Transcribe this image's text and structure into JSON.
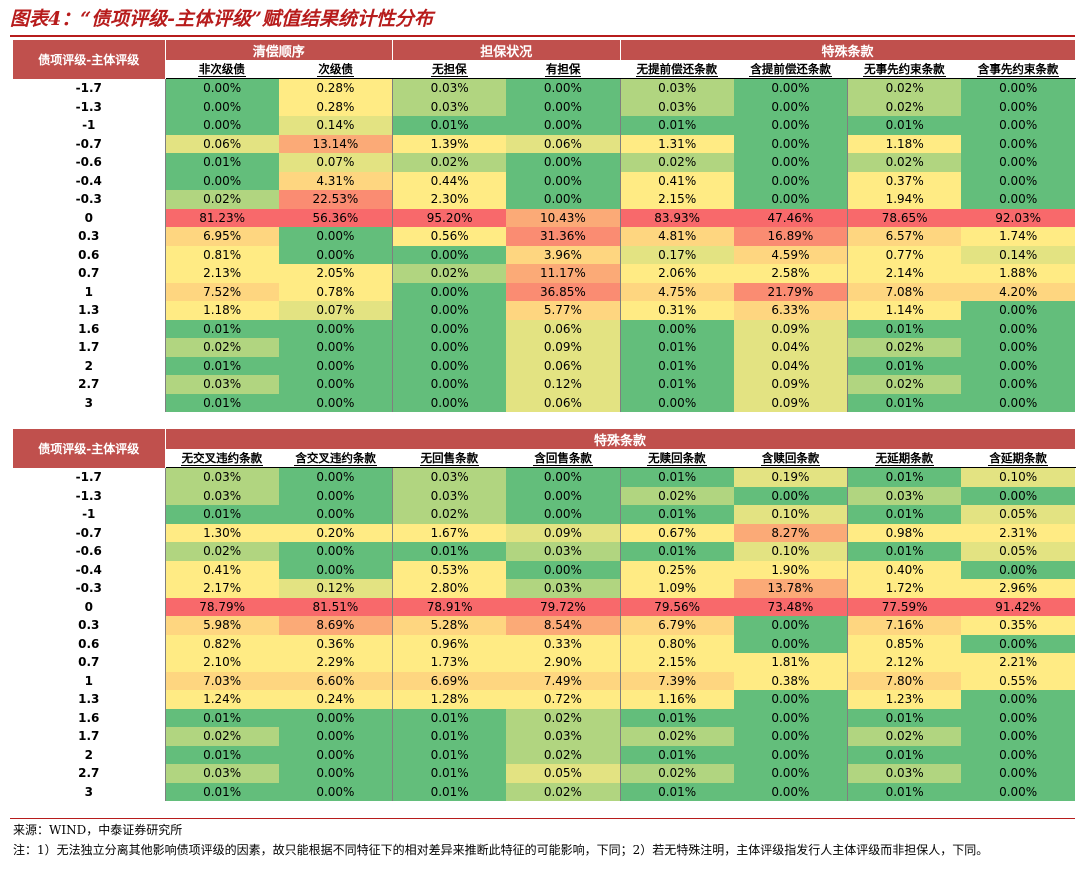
{
  "title": "图表4：“债项评级-主体评级”赋值结果统计性分布",
  "colors": {
    "header": "#c0504d",
    "high": "#f8696b",
    "orange": "#fbaa77",
    "yellow": "#ffeb84",
    "lightgreen": "#b1d580",
    "green": "#63be7b"
  },
  "table1": {
    "corner": "债项评级-主体评级",
    "groups": [
      {
        "label": "清偿顺序",
        "span": 2
      },
      {
        "label": "担保状况",
        "span": 2
      },
      {
        "label": "特殊条款",
        "span": 4
      }
    ],
    "columns": [
      "非次级债",
      "次级债",
      "无担保",
      "有担保",
      "无提前偿还条款",
      "含提前偿还条款",
      "无事先约束条款",
      "含事先约束条款"
    ],
    "rows": [
      {
        "label": "-1.7",
        "values": [
          "0.00%",
          "0.28%",
          "0.03%",
          "0.00%",
          "0.03%",
          "0.00%",
          "0.02%",
          "0.00%"
        ]
      },
      {
        "label": "-1.3",
        "values": [
          "0.00%",
          "0.28%",
          "0.03%",
          "0.00%",
          "0.03%",
          "0.00%",
          "0.02%",
          "0.00%"
        ]
      },
      {
        "label": "-1",
        "values": [
          "0.00%",
          "0.14%",
          "0.01%",
          "0.00%",
          "0.01%",
          "0.00%",
          "0.01%",
          "0.00%"
        ]
      },
      {
        "label": "-0.7",
        "values": [
          "0.06%",
          "13.14%",
          "1.39%",
          "0.06%",
          "1.31%",
          "0.00%",
          "1.18%",
          "0.00%"
        ]
      },
      {
        "label": "-0.6",
        "values": [
          "0.01%",
          "0.07%",
          "0.02%",
          "0.00%",
          "0.02%",
          "0.00%",
          "0.02%",
          "0.00%"
        ]
      },
      {
        "label": "-0.4",
        "values": [
          "0.00%",
          "4.31%",
          "0.44%",
          "0.00%",
          "0.41%",
          "0.00%",
          "0.37%",
          "0.00%"
        ]
      },
      {
        "label": "-0.3",
        "values": [
          "0.02%",
          "22.53%",
          "2.30%",
          "0.00%",
          "2.15%",
          "0.00%",
          "1.94%",
          "0.00%"
        ]
      },
      {
        "label": "0",
        "values": [
          "81.23%",
          "56.36%",
          "95.20%",
          "10.43%",
          "83.93%",
          "47.46%",
          "78.65%",
          "92.03%"
        ]
      },
      {
        "label": "0.3",
        "values": [
          "6.95%",
          "0.00%",
          "0.56%",
          "31.36%",
          "4.81%",
          "16.89%",
          "6.57%",
          "1.74%"
        ]
      },
      {
        "label": "0.6",
        "values": [
          "0.81%",
          "0.00%",
          "0.00%",
          "3.96%",
          "0.17%",
          "4.59%",
          "0.77%",
          "0.14%"
        ]
      },
      {
        "label": "0.7",
        "values": [
          "2.13%",
          "2.05%",
          "0.02%",
          "11.17%",
          "2.06%",
          "2.58%",
          "2.14%",
          "1.88%"
        ]
      },
      {
        "label": "1",
        "values": [
          "7.52%",
          "0.78%",
          "0.00%",
          "36.85%",
          "4.75%",
          "21.79%",
          "7.08%",
          "4.20%"
        ]
      },
      {
        "label": "1.3",
        "values": [
          "1.18%",
          "0.07%",
          "0.00%",
          "5.77%",
          "0.31%",
          "6.33%",
          "1.14%",
          "0.00%"
        ]
      },
      {
        "label": "1.6",
        "values": [
          "0.01%",
          "0.00%",
          "0.00%",
          "0.06%",
          "0.00%",
          "0.09%",
          "0.01%",
          "0.00%"
        ]
      },
      {
        "label": "1.7",
        "values": [
          "0.02%",
          "0.00%",
          "0.00%",
          "0.09%",
          "0.01%",
          "0.04%",
          "0.02%",
          "0.00%"
        ]
      },
      {
        "label": "2",
        "values": [
          "0.01%",
          "0.00%",
          "0.00%",
          "0.06%",
          "0.01%",
          "0.04%",
          "0.01%",
          "0.00%"
        ]
      },
      {
        "label": "2.7",
        "values": [
          "0.03%",
          "0.00%",
          "0.00%",
          "0.12%",
          "0.01%",
          "0.09%",
          "0.02%",
          "0.00%"
        ]
      },
      {
        "label": "3",
        "values": [
          "0.01%",
          "0.00%",
          "0.00%",
          "0.06%",
          "0.00%",
          "0.09%",
          "0.01%",
          "0.00%"
        ]
      }
    ]
  },
  "table2": {
    "corner": "债项评级-主体评级",
    "groups": [
      {
        "label": "特殊条款",
        "span": 8
      }
    ],
    "columns": [
      "无交叉违约条款",
      "含交叉违约条款",
      "无回售条款",
      "含回售条款",
      "无赎回条款",
      "含赎回条款",
      "无延期条款",
      "含延期条款"
    ],
    "rows": [
      {
        "label": "-1.7",
        "values": [
          "0.03%",
          "0.00%",
          "0.03%",
          "0.00%",
          "0.01%",
          "0.19%",
          "0.01%",
          "0.10%"
        ]
      },
      {
        "label": "-1.3",
        "values": [
          "0.03%",
          "0.00%",
          "0.03%",
          "0.00%",
          "0.02%",
          "0.00%",
          "0.03%",
          "0.00%"
        ]
      },
      {
        "label": "-1",
        "values": [
          "0.01%",
          "0.00%",
          "0.02%",
          "0.00%",
          "0.01%",
          "0.10%",
          "0.01%",
          "0.05%"
        ]
      },
      {
        "label": "-0.7",
        "values": [
          "1.30%",
          "0.20%",
          "1.67%",
          "0.09%",
          "0.67%",
          "8.27%",
          "0.98%",
          "2.31%"
        ]
      },
      {
        "label": "-0.6",
        "values": [
          "0.02%",
          "0.00%",
          "0.01%",
          "0.03%",
          "0.01%",
          "0.10%",
          "0.01%",
          "0.05%"
        ]
      },
      {
        "label": "-0.4",
        "values": [
          "0.41%",
          "0.00%",
          "0.53%",
          "0.00%",
          "0.25%",
          "1.90%",
          "0.40%",
          "0.00%"
        ]
      },
      {
        "label": "-0.3",
        "values": [
          "2.17%",
          "0.12%",
          "2.80%",
          "0.03%",
          "1.09%",
          "13.78%",
          "1.72%",
          "2.96%"
        ]
      },
      {
        "label": "0",
        "values": [
          "78.79%",
          "81.51%",
          "78.91%",
          "79.72%",
          "79.56%",
          "73.48%",
          "77.59%",
          "91.42%"
        ]
      },
      {
        "label": "0.3",
        "values": [
          "5.98%",
          "8.69%",
          "5.28%",
          "8.54%",
          "6.79%",
          "0.00%",
          "7.16%",
          "0.35%"
        ]
      },
      {
        "label": "0.6",
        "values": [
          "0.82%",
          "0.36%",
          "0.96%",
          "0.33%",
          "0.80%",
          "0.00%",
          "0.85%",
          "0.00%"
        ]
      },
      {
        "label": "0.7",
        "values": [
          "2.10%",
          "2.29%",
          "1.73%",
          "2.90%",
          "2.15%",
          "1.81%",
          "2.12%",
          "2.21%"
        ]
      },
      {
        "label": "1",
        "values": [
          "7.03%",
          "6.60%",
          "6.69%",
          "7.49%",
          "7.39%",
          "0.38%",
          "7.80%",
          "0.55%"
        ]
      },
      {
        "label": "1.3",
        "values": [
          "1.24%",
          "0.24%",
          "1.28%",
          "0.72%",
          "1.16%",
          "0.00%",
          "1.23%",
          "0.00%"
        ]
      },
      {
        "label": "1.6",
        "values": [
          "0.01%",
          "0.00%",
          "0.01%",
          "0.02%",
          "0.01%",
          "0.00%",
          "0.01%",
          "0.00%"
        ]
      },
      {
        "label": "1.7",
        "values": [
          "0.02%",
          "0.00%",
          "0.01%",
          "0.03%",
          "0.02%",
          "0.00%",
          "0.02%",
          "0.00%"
        ]
      },
      {
        "label": "2",
        "values": [
          "0.01%",
          "0.00%",
          "0.01%",
          "0.02%",
          "0.01%",
          "0.00%",
          "0.01%",
          "0.00%"
        ]
      },
      {
        "label": "2.7",
        "values": [
          "0.03%",
          "0.00%",
          "0.01%",
          "0.05%",
          "0.02%",
          "0.00%",
          "0.03%",
          "0.00%"
        ]
      },
      {
        "label": "3",
        "values": [
          "0.01%",
          "0.00%",
          "0.01%",
          "0.02%",
          "0.01%",
          "0.00%",
          "0.01%",
          "0.00%"
        ]
      }
    ]
  },
  "source": "来源：WIND，中泰证券研究所",
  "note": "注：1）无法独立分离其他影响债项评级的因素，故只能根据不同特征下的相对差异来推断此特征的可能影响，下同；2）若无特殊注明，主体评级指发行人主体评级而非担保人，下同。"
}
